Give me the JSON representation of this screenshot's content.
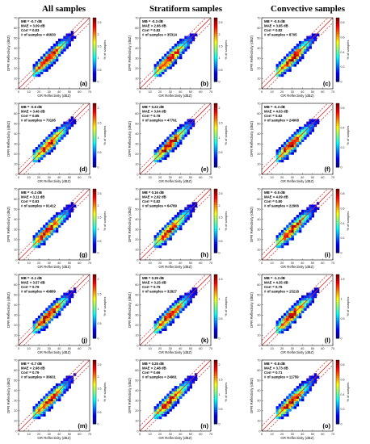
{
  "columns": [
    "All samples",
    "Stratiform samples",
    "Convective samples"
  ],
  "xlabel": "GR Reflectivity (dBZ)",
  "ylabel": "DPR Reflectivity (dBZ)",
  "colorbar_label": "% of samples",
  "axis_ticks": [
    0,
    10,
    20,
    30,
    40,
    50,
    60,
    70
  ],
  "colormap": [
    "#000080",
    "#0000ff",
    "#0080ff",
    "#00ffff",
    "#80ff80",
    "#ffff00",
    "#ff8000",
    "#ff0000",
    "#800000"
  ],
  "reference_line_color": "#d62728",
  "chart_data": [
    {
      "panel": "(a)",
      "type": "heatmap",
      "stats": [
        "MB = -0.7 dB",
        "MAE = 3.09 dB",
        "Corr = 0.83",
        "# of samples = 46630"
      ],
      "xlim": [
        0,
        70
      ],
      "ylim": [
        0,
        70
      ],
      "colorbar_ticks": [
        0,
        0.5,
        1,
        1.5,
        2,
        2.5
      ]
    },
    {
      "panel": "(b)",
      "type": "heatmap",
      "stats": [
        "MB = -0.3 dB",
        "MAE = 2.66 dB",
        "Corr = 0.82",
        "# of samples = 35314"
      ],
      "xlim": [
        0,
        70
      ],
      "ylim": [
        0,
        70
      ],
      "colorbar_ticks": [
        0,
        0.5,
        1,
        1.5,
        2,
        2.5
      ]
    },
    {
      "panel": "(c)",
      "type": "heatmap",
      "stats": [
        "MB = -0.5 dB",
        "MAE = 3.95 dB",
        "Corr = 0.82",
        "# of samples = 8705"
      ],
      "xlim": [
        0,
        70
      ],
      "ylim": [
        0,
        70
      ],
      "colorbar_ticks": [
        0,
        0.2,
        0.4,
        0.6,
        0.8
      ]
    },
    {
      "panel": "(d)",
      "type": "heatmap",
      "stats": [
        "MB = -0.6 dB",
        "MAE = 3.46 dB",
        "Corr = 0.85",
        "# of samples = 70195"
      ],
      "xlim": [
        0,
        70
      ],
      "ylim": [
        0,
        70
      ],
      "colorbar_ticks": [
        0,
        0.5,
        1,
        1.5,
        2
      ]
    },
    {
      "panel": "(e)",
      "type": "heatmap",
      "stats": [
        "MB = 0.22 dB",
        "MAE = 3.04 dB",
        "Corr = 0.78",
        "# of samples = 47791"
      ],
      "xlim": [
        0,
        70
      ],
      "ylim": [
        0,
        70
      ],
      "colorbar_ticks": [
        0,
        0.5,
        1,
        1.5,
        2
      ]
    },
    {
      "panel": "(f)",
      "type": "heatmap",
      "stats": [
        "MB = -0.3 dB",
        "MAE = 4.03 dB",
        "Corr = 0.82",
        "# of samples = 24908"
      ],
      "xlim": [
        0,
        70
      ],
      "ylim": [
        0,
        70
      ],
      "colorbar_ticks": [
        0,
        0.2,
        0.4,
        0.6
      ]
    },
    {
      "panel": "(g)",
      "type": "heatmap",
      "stats": [
        "MB = -0.2 dB",
        "MAE = 3.11 dB",
        "Corr = 0.83",
        "# of samples = 91412"
      ],
      "xlim": [
        0,
        70
      ],
      "ylim": [
        0,
        70
      ],
      "colorbar_ticks": [
        0,
        0.5,
        1,
        1.5,
        2,
        2.5
      ]
    },
    {
      "panel": "(h)",
      "type": "heatmap",
      "stats": [
        "MB = 0.16 dB",
        "MAE = 2.92 dB",
        "Corr = 0.82",
        "# of samples = 64789"
      ],
      "xlim": [
        0,
        70
      ],
      "ylim": [
        0,
        70
      ],
      "colorbar_ticks": [
        0,
        0.5,
        1,
        1.5,
        2,
        2.5
      ]
    },
    {
      "panel": "(i)",
      "type": "heatmap",
      "stats": [
        "MB = -0.5 dB",
        "MAE = 4.09 dB",
        "Corr = 0.80",
        "# of samples = 22906"
      ],
      "xlim": [
        0,
        70
      ],
      "ylim": [
        0,
        70
      ],
      "colorbar_ticks": [
        0,
        0.2,
        0.4,
        0.6,
        0.8
      ]
    },
    {
      "panel": "(j)",
      "type": "heatmap",
      "stats": [
        "MB = -0.1 dB",
        "MAE = 3.57 dB",
        "Corr = 0.79",
        "# of samples = 49889"
      ],
      "xlim": [
        0,
        70
      ],
      "ylim": [
        0,
        70
      ],
      "colorbar_ticks": [
        0,
        0.5,
        1,
        1.5,
        2
      ]
    },
    {
      "panel": "(k)",
      "type": "heatmap",
      "stats": [
        "MB = 0.39 dB",
        "MAE = 3.25 dB",
        "Corr = 0.75",
        "# of samples = 32827"
      ],
      "xlim": [
        0,
        70
      ],
      "ylim": [
        0,
        70
      ],
      "colorbar_ticks": [
        0,
        0.5,
        1,
        1.5
      ]
    },
    {
      "panel": "(l)",
      "type": "heatmap",
      "stats": [
        "MB = -1.3 dB",
        "MAE = 4.35 dB",
        "Corr = 0.75",
        "# of samples = 15218"
      ],
      "xlim": [
        0,
        70
      ],
      "ylim": [
        0,
        70
      ],
      "colorbar_ticks": [
        0,
        0.5,
        1,
        1.5
      ]
    },
    {
      "panel": "(m)",
      "type": "heatmap",
      "stats": [
        "MB = -0.7 dB",
        "MAE = 2.98 dB",
        "Corr = 0.79",
        "# of samples = 36631"
      ],
      "xlim": [
        0,
        70
      ],
      "ylim": [
        0,
        70
      ],
      "colorbar_ticks": [
        0,
        0.5,
        1,
        1.5,
        2,
        2.5
      ]
    },
    {
      "panel": "(n)",
      "type": "heatmap",
      "stats": [
        "MB = 0.25 dB",
        "MAE = 2.48 dB",
        "Corr = 0.66",
        "# of samples = 24991"
      ],
      "xlim": [
        0,
        70
      ],
      "ylim": [
        0,
        70
      ],
      "colorbar_ticks": [
        0,
        0.5,
        1,
        1.5,
        2
      ]
    },
    {
      "panel": "(o)",
      "type": "heatmap",
      "stats": [
        "MB = -0.8 dB",
        "MAE = 3.73 dB",
        "Corr = 0.71",
        "# of samples = 11759"
      ],
      "xlim": [
        0,
        70
      ],
      "ylim": [
        0,
        70
      ],
      "colorbar_ticks": [
        0,
        0.2,
        0.4,
        0.6,
        0.8
      ]
    }
  ]
}
